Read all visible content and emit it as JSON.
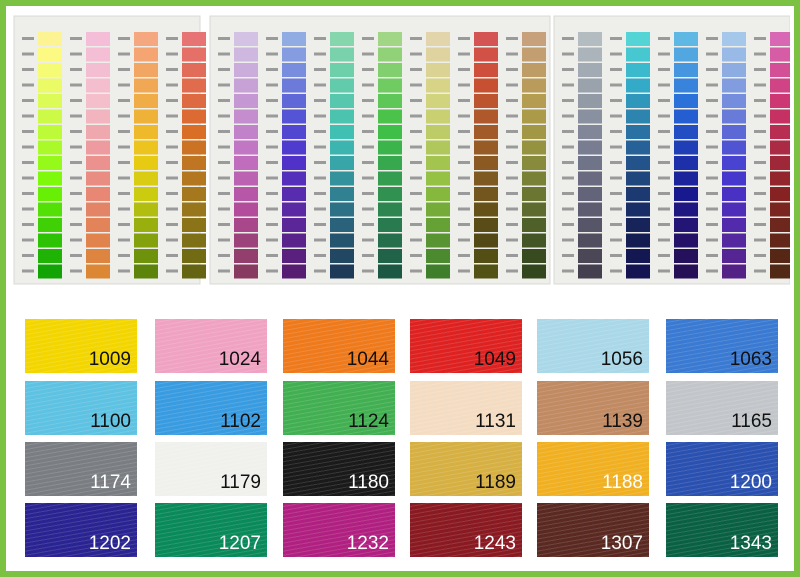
{
  "swatches": [
    {
      "label": "1009",
      "color": "#f3d600",
      "text_color": "#111111"
    },
    {
      "label": "1024",
      "color": "#f0a2c2",
      "text_color": "#111111"
    },
    {
      "label": "1044",
      "color": "#ee7a1c",
      "text_color": "#111111"
    },
    {
      "label": "1049",
      "color": "#de2222",
      "text_color": "#111111"
    },
    {
      "label": "1056",
      "color": "#aad8e8",
      "text_color": "#111111"
    },
    {
      "label": "1063",
      "color": "#3a7ad2",
      "text_color": "#111111"
    },
    {
      "label": "1100",
      "color": "#5ec2e2",
      "text_color": "#111111"
    },
    {
      "label": "1102",
      "color": "#3a9ce0",
      "text_color": "#111111"
    },
    {
      "label": "1124",
      "color": "#42b052",
      "text_color": "#111111"
    },
    {
      "label": "1131",
      "color": "#f4dcc2",
      "text_color": "#111111"
    },
    {
      "label": "1139",
      "color": "#c08a62",
      "text_color": "#111111"
    },
    {
      "label": "1165",
      "color": "#c2c6ca",
      "text_color": "#111111"
    },
    {
      "label": "1174",
      "color": "#7a7e82",
      "text_color": "#ffffff"
    },
    {
      "label": "1179",
      "color": "#f0f0ec",
      "text_color": "#111111"
    },
    {
      "label": "1180",
      "color": "#1a1a1a",
      "text_color": "#ffffff"
    },
    {
      "label": "1189",
      "color": "#d6b042",
      "text_color": "#111111"
    },
    {
      "label": "1188",
      "color": "#f0b022",
      "text_color": "#ffffff"
    },
    {
      "label": "1200",
      "color": "#2a50b0",
      "text_color": "#ffffff"
    },
    {
      "label": "1202",
      "color": "#2a2492",
      "text_color": "#ffffff"
    },
    {
      "label": "1207",
      "color": "#0a8a5a",
      "text_color": "#ffffff"
    },
    {
      "label": "1232",
      "color": "#b02080",
      "text_color": "#ffffff"
    },
    {
      "label": "1243",
      "color": "#8a1a22",
      "text_color": "#ffffff"
    },
    {
      "label": "1307",
      "color": "#5a2a22",
      "text_color": "#ffffff"
    },
    {
      "label": "1343",
      "color": "#0a6042",
      "text_color": "#ffffff"
    }
  ]
}
